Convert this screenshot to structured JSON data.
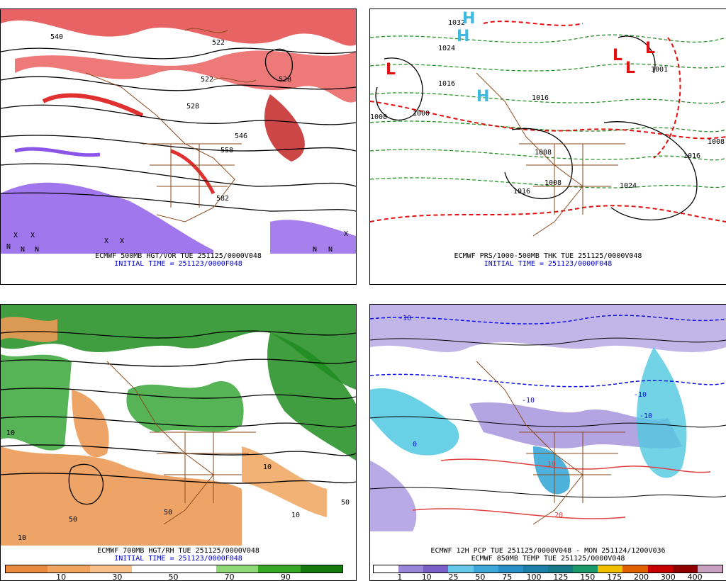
{
  "panels": [
    {
      "id": "p500",
      "caption_lines": [
        {
          "text": "ECMWF 500MB HGT/VOR TUE 251125/0000V048",
          "color": "black"
        },
        {
          "text": "INITIAL TIME = 251123/0000F048",
          "color": "blue"
        }
      ],
      "contour_labels": [
        "540",
        "522",
        "522",
        "528",
        "528",
        "546",
        "558",
        "582"
      ],
      "markers": [
        "X",
        "X",
        "X",
        "X",
        "X",
        "N",
        "N",
        "N",
        "N",
        "N"
      ]
    },
    {
      "id": "pprs",
      "caption_lines": [
        {
          "text": "ECMWF PRS/1000-500MB THK TUE 251125/0000V048",
          "color": "black"
        },
        {
          "text": "INITIAL TIME = 251123/0000F048",
          "color": "blue"
        }
      ],
      "contour_labels": [
        "1032",
        "1024",
        "1016",
        "1008",
        "1000",
        "1016",
        "1008",
        "1024",
        "1008",
        "1016",
        "1016",
        "1008",
        "1001"
      ],
      "markers": [
        "H",
        "H",
        "H",
        "L",
        "L",
        "L",
        "L"
      ]
    },
    {
      "id": "p700",
      "caption_lines": [
        {
          "text": "ECMWF 700MB HGT/RH TUE 251125/0000V048",
          "color": "black"
        },
        {
          "text": "INITIAL TIME = 251123/0000F048",
          "color": "blue"
        }
      ],
      "contour_labels": [
        "10",
        "10",
        "50",
        "50",
        "10",
        "50",
        "10"
      ],
      "colorbar": {
        "colors": [
          "#e98a3f",
          "#f0a45e",
          "#f7c08b",
          "#ffffff",
          "#ffffff",
          "#8fd878",
          "#35a824",
          "#137a0e"
        ],
        "ticks": [
          "10",
          "30",
          "50",
          "70",
          "90"
        ]
      }
    },
    {
      "id": "pcp",
      "caption_lines": [
        {
          "text": "ECMWF 12H PCP TUE 251125/0000V048 - MON 251124/1200V036",
          "color": "black"
        },
        {
          "text": "ECMWF 850MB TEMP TUE 251125/0000V048",
          "color": "black"
        }
      ],
      "contour_labels": [
        "-10",
        "-10",
        "-10",
        "0",
        "-10",
        "10",
        "20"
      ],
      "colorbar": {
        "colors": [
          "#ffffff",
          "#9a86d8",
          "#7a5fc8",
          "#66c8e8",
          "#3aa8d8",
          "#2890c8",
          "#1a80a8",
          "#147a88",
          "#1a9a6a",
          "#f0c000",
          "#e06000",
          "#c80000",
          "#900000",
          "#c8a0c0"
        ],
        "ticks": [
          "1",
          "10",
          "25",
          "50",
          "75",
          "100",
          "125",
          "150",
          "175",
          "200",
          "300",
          "400"
        ]
      }
    }
  ],
  "colors": {
    "vorticity_red": "#e03030",
    "vorticity_violet": "#8a55e8",
    "borders_brown": "#8b4a1e",
    "thk_red": "#e01010",
    "thk_green": "#1a8a1a",
    "rh_green": "#1e8c1e",
    "rh_orange": "#ec9a55",
    "pcp_violet": "#9a86d8",
    "pcp_cyan": "#50c8e0",
    "temp_blue": "#1010e0",
    "temp_red": "#e04040"
  }
}
